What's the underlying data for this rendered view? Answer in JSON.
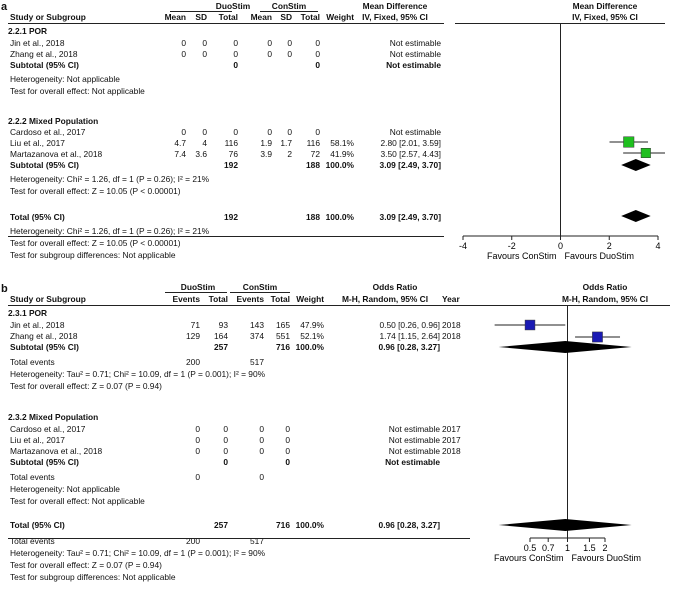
{
  "panel_a": {
    "letter": "a",
    "group1_label": "DuoStim",
    "group2_label": "ConStim",
    "headers": {
      "study": "Study or Subgroup",
      "mean1": "Mean",
      "sd1": "SD",
      "total1": "Total",
      "mean2": "Mean",
      "sd2": "SD",
      "total2": "Total",
      "weight": "Weight",
      "effect_title": "Mean Difference",
      "effect_method": "IV, Fixed, 95% CI",
      "plot_title": "Mean Difference",
      "plot_method": "IV, Fixed, 95% CI"
    },
    "sub1": {
      "title": "2.2.1 POR",
      "rows": [
        {
          "study": "Jin et al., 2018",
          "mean1": "0",
          "sd1": "0",
          "total1": "0",
          "mean2": "0",
          "sd2": "0",
          "total2": "0",
          "weight": "",
          "ci": "Not estimable"
        },
        {
          "study": "Zhang et al., 2018",
          "mean1": "0",
          "sd1": "0",
          "total1": "0",
          "mean2": "0",
          "sd2": "0",
          "total2": "0",
          "weight": "",
          "ci": "Not estimable"
        }
      ],
      "subtotal": {
        "label": "Subtotal (95% CI)",
        "total1": "0",
        "total2": "0",
        "weight": "",
        "ci": "Not estimable"
      },
      "heterogeneity": "Heterogeneity: Not applicable",
      "overall": "Test for overall effect: Not applicable"
    },
    "sub2": {
      "title": "2.2.2 Mixed Population",
      "rows": [
        {
          "study": "Cardoso et al., 2017",
          "mean1": "0",
          "sd1": "0",
          "total1": "0",
          "mean2": "0",
          "sd2": "0",
          "total2": "0",
          "weight": "",
          "ci": "Not estimable"
        },
        {
          "study": "Liu et al., 2017",
          "mean1": "4.7",
          "sd1": "4",
          "total1": "116",
          "mean2": "1.9",
          "sd2": "1.7",
          "total2": "116",
          "weight": "58.1%",
          "ci": "2.80 [2.01, 3.59]"
        },
        {
          "study": "Martazanova et al., 2018",
          "mean1": "7.4",
          "sd1": "3.6",
          "total1": "76",
          "mean2": "3.9",
          "sd2": "2",
          "total2": "72",
          "weight": "41.9%",
          "ci": "3.50 [2.57, 4.43]"
        }
      ],
      "subtotal": {
        "label": "Subtotal (95% CI)",
        "total1": "192",
        "total2": "188",
        "weight": "100.0%",
        "ci": "3.09 [2.49, 3.70]"
      },
      "heterogeneity": "Heterogeneity: Chi² = 1.26, df = 1 (P = 0.26); I² = 21%",
      "overall": "Test for overall effect: Z = 10.05 (P < 0.00001)"
    },
    "total": {
      "label": "Total (95% CI)",
      "total1": "192",
      "total2": "188",
      "weight": "100.0%",
      "ci": "3.09 [2.49, 3.70]"
    },
    "total_heterogeneity": "Heterogeneity: Chi² = 1.26, df = 1 (P = 0.26); I² = 21%",
    "total_overall": "Test for overall effect: Z = 10.05 (P < 0.00001)",
    "subgroup_diff": "Test for subgroup differences: Not applicable",
    "favours_left": "Favours ConStim",
    "favours_right": "Favours DuoStim"
  },
  "panel_b": {
    "letter": "b",
    "group1_label": "DuoStim",
    "group2_label": "ConStim",
    "headers": {
      "study": "Study or Subgroup",
      "events1": "Events",
      "total1": "Total",
      "events2": "Events",
      "total2": "Total",
      "weight": "Weight",
      "effect_title": "Odds Ratio",
      "effect_method": "M-H, Random, 95% CI",
      "year": "Year",
      "plot_title": "Odds Ratio",
      "plot_method": "M-H, Random, 95% CI"
    },
    "sub1": {
      "title": "2.3.1 POR",
      "rows": [
        {
          "study": "Jin et al., 2018",
          "events1": "71",
          "total1": "93",
          "events2": "143",
          "total2": "165",
          "weight": "47.9%",
          "ci": "0.50 [0.26, 0.96]",
          "year": "2018"
        },
        {
          "study": "Zhang et al., 2018",
          "events1": "129",
          "total1": "164",
          "events2": "374",
          "total2": "551",
          "weight": "52.1%",
          "ci": "1.74 [1.15, 2.64]",
          "year": "2018"
        }
      ],
      "subtotal": {
        "label": "Subtotal (95% CI)",
        "total1": "257",
        "total2": "716",
        "weight": "100.0%",
        "ci": "0.96 [0.28, 3.27]"
      },
      "events_label": "Total events",
      "events1": "200",
      "events2": "517",
      "heterogeneity": "Heterogeneity: Tau² = 0.71; Chi² = 10.09, df = 1 (P = 0.001); I² = 90%",
      "overall": "Test for overall effect: Z = 0.07 (P = 0.94)"
    },
    "sub2": {
      "title": "2.3.2 Mixed Population",
      "rows": [
        {
          "study": "Cardoso et al., 2017",
          "events1": "0",
          "total1": "0",
          "events2": "0",
          "total2": "0",
          "weight": "",
          "ci": "Not estimable",
          "year": "2017"
        },
        {
          "study": "Liu et al., 2017",
          "events1": "0",
          "total1": "0",
          "events2": "0",
          "total2": "0",
          "weight": "",
          "ci": "Not estimable",
          "year": "2017"
        },
        {
          "study": "Martazanova et al., 2018",
          "events1": "0",
          "total1": "0",
          "events2": "0",
          "total2": "0",
          "weight": "",
          "ci": "Not estimable",
          "year": "2018"
        }
      ],
      "subtotal": {
        "label": "Subtotal (95% CI)",
        "total1": "0",
        "total2": "0",
        "weight": "",
        "ci": "Not estimable"
      },
      "events_label": "Total events",
      "events1": "0",
      "events2": "0",
      "heterogeneity": "Heterogeneity: Not applicable",
      "overall": "Test for overall effect: Not applicable"
    },
    "total": {
      "label": "Total (95% CI)",
      "total1": "257",
      "total2": "716",
      "weight": "100.0%",
      "ci": "0.96 [0.28, 3.27]"
    },
    "total_events_label": "Total events",
    "total_events1": "200",
    "total_events2": "517",
    "total_heterogeneity": "Heterogeneity: Tau² = 0.71; Chi² = 10.09, df = 1 (P = 0.001); I² = 90%",
    "total_overall": "Test for overall effect: Z = 0.07 (P = 0.94)",
    "subgroup_diff": "Test for subgroup differences: Not applicable",
    "favours_left": "Favours ConStim",
    "favours_right": "Favours DuoStim"
  },
  "chart_data": [
    {
      "type": "forest",
      "scale": "linear",
      "xlim": [
        -4,
        4
      ],
      "ticks": [
        "-4",
        "-2",
        "0",
        "2",
        "4"
      ],
      "tick_values": [
        -4,
        -2,
        0,
        2,
        4
      ],
      "null_value": 0,
      "marker_color": "#1fbf1f",
      "studies": [
        {
          "study": "Liu et al., 2017",
          "est": 2.8,
          "lo": 2.01,
          "hi": 3.59,
          "weight": 58.1
        },
        {
          "study": "Martazanova et al., 2018",
          "est": 3.5,
          "lo": 2.57,
          "hi": 4.43,
          "weight": 41.9
        }
      ],
      "diamonds": [
        {
          "label": "Subtotal (95% CI)",
          "est": 3.09,
          "lo": 2.49,
          "hi": 3.7
        },
        {
          "label": "Total (95% CI)",
          "est": 3.09,
          "lo": 2.49,
          "hi": 3.7
        }
      ]
    },
    {
      "type": "forest",
      "scale": "log",
      "xlim": [
        0.5,
        2
      ],
      "ticks": [
        "0.5",
        "0.7",
        "1",
        "1.5",
        "2"
      ],
      "tick_values": [
        0.5,
        0.7,
        1,
        1.5,
        2
      ],
      "null_value": 1,
      "marker_color": "#1a1ab4",
      "studies": [
        {
          "study": "Jin et al., 2018",
          "est": 0.5,
          "lo": 0.26,
          "hi": 0.96,
          "weight": 47.9
        },
        {
          "study": "Zhang et al., 2018",
          "est": 1.74,
          "lo": 1.15,
          "hi": 2.64,
          "weight": 52.1
        }
      ],
      "diamonds": [
        {
          "label": "Subtotal (95% CI)",
          "est": 0.96,
          "lo": 0.28,
          "hi": 3.27
        },
        {
          "label": "Total (95% CI)",
          "est": 0.96,
          "lo": 0.28,
          "hi": 3.27
        }
      ]
    }
  ]
}
